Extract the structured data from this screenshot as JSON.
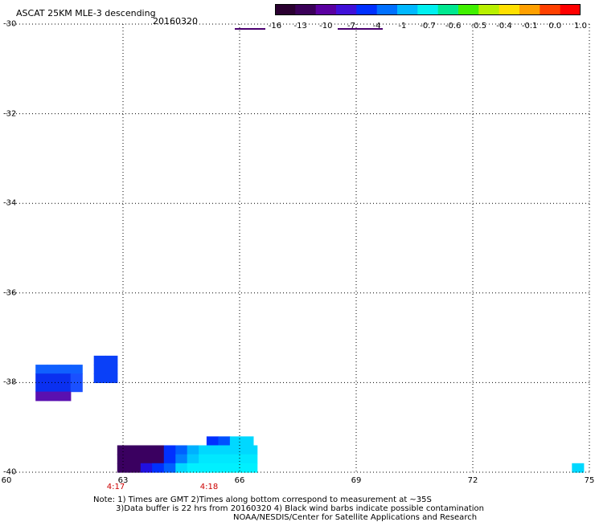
{
  "header": {
    "title": "ASCAT 25KM MLE-3 descending",
    "date": "20160320"
  },
  "colorbar": {
    "labels": [
      "-16",
      "-13",
      "-10",
      "-7",
      "-4",
      "-1",
      "-0.7",
      "-0.6",
      "-0.5",
      "-0.4",
      "-0.1",
      "0.0",
      "1.0"
    ],
    "colors": [
      "#2a0030",
      "#3a0058",
      "#5a00a0",
      "#4010d8",
      "#0030ff",
      "#0070ff",
      "#00b8ff",
      "#00f0f0",
      "#00e890",
      "#40f000",
      "#b8f000",
      "#ffe000",
      "#ffa000",
      "#ff4000",
      "#ff0000"
    ]
  },
  "axes": {
    "lat_labels": [
      "-30",
      "-32",
      "-34",
      "-36",
      "-38",
      "-40"
    ],
    "lon_labels": [
      "60",
      "63",
      "66",
      "69",
      "72",
      "75"
    ],
    "time_labels": [
      "4:17",
      "4:18"
    ]
  },
  "notes": {
    "line1": "Note: 1) Times are GMT 2)Times along bottom correspond to measurement at ~35S",
    "line2": "3)Data buffer is 22 hrs from 20160320 4) Black wind barbs indicate possible contamination",
    "line3": "NOAA/NESDIS/Center for Satellite Applications and Research"
  },
  "map_data": {
    "lat_range": [
      -40,
      -30
    ],
    "lon_range": [
      60,
      75
    ],
    "cells": [
      {
        "lon": 60.9,
        "lat": -37.7,
        "color": "#1060ff"
      },
      {
        "lon": 61.2,
        "lat": -37.7,
        "color": "#1060ff"
      },
      {
        "lon": 61.5,
        "lat": -37.7,
        "color": "#1060ff"
      },
      {
        "lon": 61.8,
        "lat": -37.7,
        "color": "#1060ff"
      },
      {
        "lon": 60.9,
        "lat": -37.9,
        "color": "#0a30f0"
      },
      {
        "lon": 61.2,
        "lat": -37.9,
        "color": "#0a30f0"
      },
      {
        "lon": 61.5,
        "lat": -37.9,
        "color": "#0a30f0"
      },
      {
        "lon": 61.8,
        "lat": -37.9,
        "color": "#1a50ff"
      },
      {
        "lon": 60.9,
        "lat": -38.1,
        "color": "#0a30f0"
      },
      {
        "lon": 61.2,
        "lat": -38.1,
        "color": "#0a30f0"
      },
      {
        "lon": 61.5,
        "lat": -38.1,
        "color": "#0a30f0"
      },
      {
        "lon": 61.8,
        "lat": -38.1,
        "color": "#1a50ff"
      },
      {
        "lon": 60.9,
        "lat": -38.3,
        "color": "#5a10b0"
      },
      {
        "lon": 61.2,
        "lat": -38.3,
        "color": "#5a10b0"
      },
      {
        "lon": 61.5,
        "lat": -38.3,
        "color": "#5a10b0"
      },
      {
        "lon": 62.4,
        "lat": -37.5,
        "color": "#0a40f8"
      },
      {
        "lon": 62.7,
        "lat": -37.5,
        "color": "#0a40f8"
      },
      {
        "lon": 62.4,
        "lat": -37.7,
        "color": "#0a40f8"
      },
      {
        "lon": 62.7,
        "lat": -37.7,
        "color": "#0a40f8"
      },
      {
        "lon": 62.4,
        "lat": -37.9,
        "color": "#0a40f8"
      },
      {
        "lon": 62.7,
        "lat": -37.9,
        "color": "#0a40f8"
      },
      {
        "lon": 65.3,
        "lat": -39.3,
        "color": "#0030ff"
      },
      {
        "lon": 65.6,
        "lat": -39.3,
        "color": "#0050ff"
      },
      {
        "lon": 65.9,
        "lat": -39.3,
        "color": "#00d8ff"
      },
      {
        "lon": 66.2,
        "lat": -39.3,
        "color": "#00d8ff"
      },
      {
        "lon": 63.0,
        "lat": -39.5,
        "color": "#3a0060"
      },
      {
        "lon": 63.3,
        "lat": -39.5,
        "color": "#3a0060"
      },
      {
        "lon": 63.6,
        "lat": -39.5,
        "color": "#3a0060"
      },
      {
        "lon": 63.9,
        "lat": -39.5,
        "color": "#3a0060"
      },
      {
        "lon": 64.2,
        "lat": -39.5,
        "color": "#0030ff"
      },
      {
        "lon": 64.5,
        "lat": -39.5,
        "color": "#0060ff"
      },
      {
        "lon": 64.8,
        "lat": -39.5,
        "color": "#00b0ff"
      },
      {
        "lon": 65.1,
        "lat": -39.5,
        "color": "#00d8ff"
      },
      {
        "lon": 65.4,
        "lat": -39.5,
        "color": "#00d8ff"
      },
      {
        "lon": 65.7,
        "lat": -39.5,
        "color": "#00d8ff"
      },
      {
        "lon": 66.0,
        "lat": -39.5,
        "color": "#00d8ff"
      },
      {
        "lon": 66.3,
        "lat": -39.5,
        "color": "#00d8ff"
      },
      {
        "lon": 63.0,
        "lat": -39.7,
        "color": "#3a0060"
      },
      {
        "lon": 63.3,
        "lat": -39.7,
        "color": "#3a0060"
      },
      {
        "lon": 63.6,
        "lat": -39.7,
        "color": "#3a0060"
      },
      {
        "lon": 63.9,
        "lat": -39.7,
        "color": "#3a0060"
      },
      {
        "lon": 64.2,
        "lat": -39.7,
        "color": "#0030ff"
      },
      {
        "lon": 64.5,
        "lat": -39.7,
        "color": "#0080ff"
      },
      {
        "lon": 64.8,
        "lat": -39.7,
        "color": "#00c8ff"
      },
      {
        "lon": 65.1,
        "lat": -39.7,
        "color": "#00e8ff"
      },
      {
        "lon": 65.4,
        "lat": -39.7,
        "color": "#00e8ff"
      },
      {
        "lon": 65.7,
        "lat": -39.7,
        "color": "#00e8ff"
      },
      {
        "lon": 66.0,
        "lat": -39.7,
        "color": "#00e8ff"
      },
      {
        "lon": 66.3,
        "lat": -39.7,
        "color": "#00e8ff"
      },
      {
        "lon": 63.0,
        "lat": -39.9,
        "color": "#3a0060"
      },
      {
        "lon": 63.3,
        "lat": -39.9,
        "color": "#3a0060"
      },
      {
        "lon": 63.6,
        "lat": -39.9,
        "color": "#2010e0"
      },
      {
        "lon": 63.9,
        "lat": -39.9,
        "color": "#0030ff"
      },
      {
        "lon": 64.2,
        "lat": -39.9,
        "color": "#0060ff"
      },
      {
        "lon": 64.5,
        "lat": -39.9,
        "color": "#00d8ff"
      },
      {
        "lon": 64.8,
        "lat": -39.9,
        "color": "#00f0ff"
      },
      {
        "lon": 65.1,
        "lat": -39.9,
        "color": "#00f0ff"
      },
      {
        "lon": 65.4,
        "lat": -39.9,
        "color": "#00f0ff"
      },
      {
        "lon": 65.7,
        "lat": -39.9,
        "color": "#00f0ff"
      },
      {
        "lon": 66.0,
        "lat": -39.9,
        "color": "#00f0ff"
      },
      {
        "lon": 66.3,
        "lat": -39.9,
        "color": "#00f0ff"
      },
      {
        "lon": 74.7,
        "lat": -39.9,
        "color": "#00d8ff"
      }
    ]
  }
}
